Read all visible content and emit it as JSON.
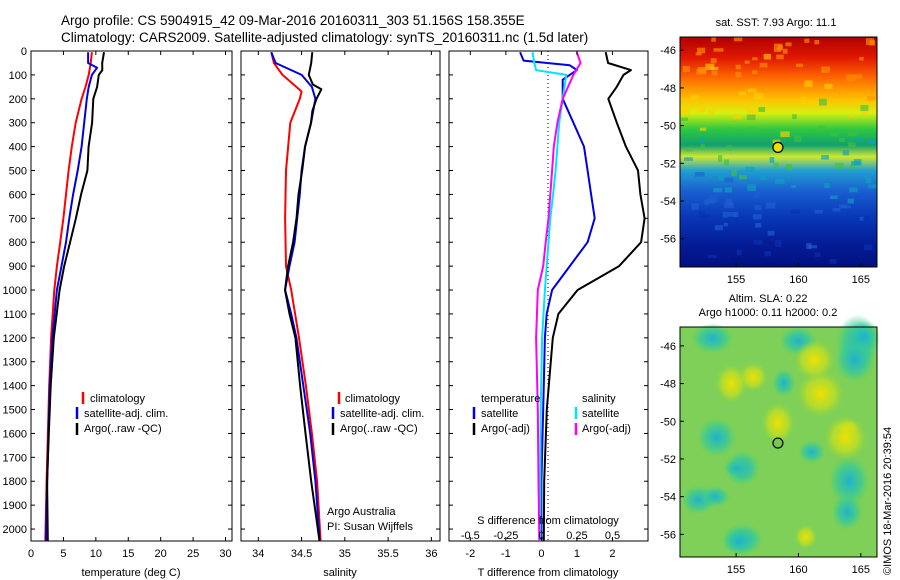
{
  "title_line1": "Argo profile: CS 5904915_42 09-Mar-2016 20160311_303 51.156S 158.355E",
  "title_line2": "Climatology: CARS2009. Satellite-adjusted climatology: synTS_20160311.nc (1.5d later)",
  "footer_vertical": "©IMOS 18-Mar-2016 20:39:54",
  "colors": {
    "climatology": "#ff0000",
    "satellite": "#0000e0",
    "argo": "#000000",
    "satellite_salinity": "#00e5ff",
    "argo_salinity_adj": "#ff00ff"
  },
  "chart_data": [
    {
      "type": "line",
      "id": "temperature",
      "xlabel": "temperature (deg C)",
      "xlim": [
        0,
        31
      ],
      "ylim": [
        2050,
        0
      ],
      "xticks": [
        "0",
        "5",
        "10",
        "15",
        "20",
        "25",
        "30"
      ],
      "yticks": [
        "0",
        "100",
        "200",
        "300",
        "400",
        "500",
        "600",
        "700",
        "800",
        "900",
        "1000",
        "1100",
        "1200",
        "1300",
        "1400",
        "1500",
        "1600",
        "1700",
        "1800",
        "1900",
        "2000"
      ],
      "legend": [
        "climatology",
        "satellite-adj. clim.",
        "Argo(..raw -QC)"
      ],
      "series": [
        {
          "name": "climatology",
          "color": "#ff0000",
          "depth": [
            5,
            50,
            100,
            150,
            200,
            300,
            400,
            500,
            600,
            700,
            800,
            900,
            1000,
            1200,
            1400,
            1600,
            1800,
            2050
          ],
          "values": [
            9.4,
            9.2,
            8.9,
            8.4,
            7.8,
            6.9,
            6.3,
            5.8,
            5.4,
            5.0,
            4.5,
            4.0,
            3.6,
            3.1,
            2.8,
            2.6,
            2.4,
            2.2
          ]
        },
        {
          "name": "satellite-adj. clim.",
          "color": "#0000e0",
          "depth": [
            5,
            50,
            70,
            100,
            150,
            200,
            300,
            400,
            500,
            600,
            700,
            800,
            900,
            1000,
            1200,
            1400,
            1600,
            1800,
            2050
          ],
          "values": [
            8.8,
            8.8,
            10.2,
            9.4,
            8.9,
            8.6,
            8.2,
            7.8,
            7.2,
            6.5,
            5.9,
            5.4,
            4.7,
            4.0,
            3.3,
            2.9,
            2.7,
            2.5,
            2.3
          ]
        },
        {
          "name": "Argo(..raw -QC)",
          "color": "#000000",
          "depth": [
            5,
            50,
            80,
            100,
            150,
            200,
            300,
            400,
            500,
            600,
            700,
            800,
            900,
            1000,
            1200,
            1400,
            1600,
            1800,
            2050
          ],
          "values": [
            11.2,
            11.1,
            10.9,
            10.4,
            10.1,
            9.7,
            9.3,
            9.0,
            8.6,
            7.8,
            6.9,
            6.0,
            5.2,
            4.3,
            3.4,
            3.0,
            2.8,
            2.6,
            2.5
          ]
        }
      ]
    },
    {
      "type": "line",
      "id": "salinity",
      "xlabel": "salinity",
      "xlim": [
        33.8,
        36.1
      ],
      "ylim": [
        2050,
        0
      ],
      "xticks": [
        "34",
        "34.5",
        "35",
        "35.5",
        "36"
      ],
      "legend": [
        "climatology",
        "satellite-adj. clim.",
        "Argo(..raw -QC)"
      ],
      "annotation": [
        "Argo Australia",
        "PI: Susan Wijffels"
      ],
      "series": [
        {
          "name": "climatology",
          "color": "#ff0000",
          "depth": [
            5,
            50,
            100,
            150,
            170,
            200,
            300,
            500,
            700,
            900,
            1000,
            1200,
            1400,
            1600,
            1800,
            2050
          ],
          "values": [
            34.15,
            34.18,
            34.28,
            34.44,
            34.5,
            34.48,
            34.37,
            34.32,
            34.31,
            34.32,
            34.38,
            34.47,
            34.55,
            34.62,
            34.68,
            34.72
          ]
        },
        {
          "name": "satellite-adj. clim.",
          "color": "#0000e0",
          "depth": [
            5,
            50,
            100,
            150,
            200,
            300,
            400,
            500,
            600,
            700,
            800,
            900,
            1000,
            1100,
            1200,
            1400,
            1600,
            1800,
            2050
          ],
          "values": [
            34.15,
            34.2,
            34.5,
            34.62,
            34.66,
            34.61,
            34.54,
            34.5,
            34.48,
            34.45,
            34.42,
            34.36,
            34.31,
            34.38,
            34.44,
            34.52,
            34.6,
            34.66,
            34.71
          ]
        },
        {
          "name": "Argo(..raw -QC)",
          "color": "#000000",
          "depth": [
            5,
            50,
            100,
            140,
            160,
            200,
            250,
            300,
            400,
            500,
            600,
            700,
            800,
            900,
            1000,
            1100,
            1200,
            1400,
            1600,
            1800,
            2050
          ],
          "values": [
            34.62,
            34.62,
            34.58,
            34.63,
            34.72,
            34.68,
            34.63,
            34.6,
            34.55,
            34.5,
            34.47,
            34.44,
            34.4,
            34.35,
            34.3,
            34.37,
            34.42,
            34.48,
            34.55,
            34.62,
            34.7
          ]
        }
      ]
    },
    {
      "type": "line",
      "id": "difference",
      "xlabel": "T difference from climatology",
      "xlabel_top": "S difference from climatology",
      "xlim": [
        -2.6,
        3.0
      ],
      "ylim": [
        2050,
        0
      ],
      "xticks": [
        "-2",
        "-1",
        "0",
        "1",
        "2"
      ],
      "xticks_top": [
        "-0.5",
        "-0.25",
        "0",
        "0.25",
        "0.5"
      ],
      "legend_titles": [
        "temperature",
        "salinity"
      ],
      "legend": [
        "satellite",
        "Argo(-adj)",
        "satellite",
        "Argo(-adj)"
      ],
      "series": [
        {
          "name": "satellite",
          "group": "temperature",
          "color": "#0000e0",
          "depth": [
            5,
            40,
            60,
            80,
            120,
            200,
            300,
            400,
            500,
            600,
            700,
            800,
            900,
            1000,
            1100,
            1200,
            1500,
            1800,
            2050
          ],
          "values": [
            -0.6,
            -0.5,
            0.8,
            1.0,
            0.6,
            0.6,
            0.9,
            1.2,
            1.3,
            1.4,
            1.5,
            1.3,
            0.8,
            0.3,
            0.15,
            0.1,
            0.05,
            0.0,
            0.0
          ]
        },
        {
          "name": "Argo(-adj)",
          "group": "temperature",
          "color": "#000000",
          "depth": [
            5,
            50,
            80,
            100,
            150,
            200,
            300,
            400,
            500,
            600,
            700,
            800,
            900,
            1000,
            1100,
            1200,
            1500,
            1800,
            2050
          ],
          "values": [
            1.8,
            1.9,
            2.5,
            2.3,
            2.1,
            1.9,
            2.1,
            2.4,
            2.7,
            2.8,
            2.9,
            2.8,
            2.2,
            1.0,
            0.5,
            0.3,
            0.15,
            0.1,
            0.05
          ]
        },
        {
          "name": "satellite",
          "group": "salinity",
          "color": "#00e5ff",
          "depth": [
            5,
            50,
            80,
            100,
            200,
            300,
            400,
            500,
            600,
            700,
            800,
            900,
            1000,
            1200,
            1500,
            1800,
            2050
          ],
          "values": [
            -0.25,
            -0.2,
            -0.15,
            0.7,
            0.6,
            0.5,
            0.45,
            0.4,
            0.33,
            0.25,
            0.2,
            0.15,
            0.1,
            0.02,
            -0.02,
            -0.03,
            -0.03
          ]
        },
        {
          "name": "Argo(-adj)",
          "group": "salinity",
          "color": "#ff00ff",
          "depth": [
            5,
            50,
            100,
            200,
            300,
            400,
            500,
            600,
            700,
            800,
            900,
            1000,
            1200,
            1500,
            1800,
            2050
          ],
          "values": [
            1.0,
            1.1,
            0.9,
            0.6,
            0.45,
            0.35,
            0.3,
            0.25,
            0.2,
            0.12,
            0.05,
            -0.1,
            -0.15,
            -0.1,
            -0.08,
            -0.06
          ]
        }
      ]
    },
    {
      "type": "heatmap",
      "id": "sst-map",
      "title": "sat. SST: 7.93  Argo: 11.1",
      "xlim": [
        150.5,
        166.3
      ],
      "ylim": [
        -57.5,
        -45.3
      ],
      "xticks": [
        "155",
        "160",
        "165"
      ],
      "yticks": [
        "-46",
        "-48",
        "-50",
        "-52",
        "-54",
        "-56"
      ],
      "marker": {
        "lon": 158.355,
        "lat": -51.156
      }
    },
    {
      "type": "heatmap",
      "id": "sla-map",
      "title": "Altim. SLA: 0.22",
      "subtitle": "Argo h1000: 0.11  h2000: 0.2",
      "xlim": [
        150.5,
        166.3
      ],
      "ylim": [
        -57.2,
        -45.0
      ],
      "xticks": [
        "155",
        "160",
        "165"
      ],
      "yticks": [
        "-46",
        "-48",
        "-50",
        "-52",
        "-54",
        "-56"
      ],
      "marker": {
        "lon": 158.355,
        "lat": -51.156
      }
    }
  ]
}
